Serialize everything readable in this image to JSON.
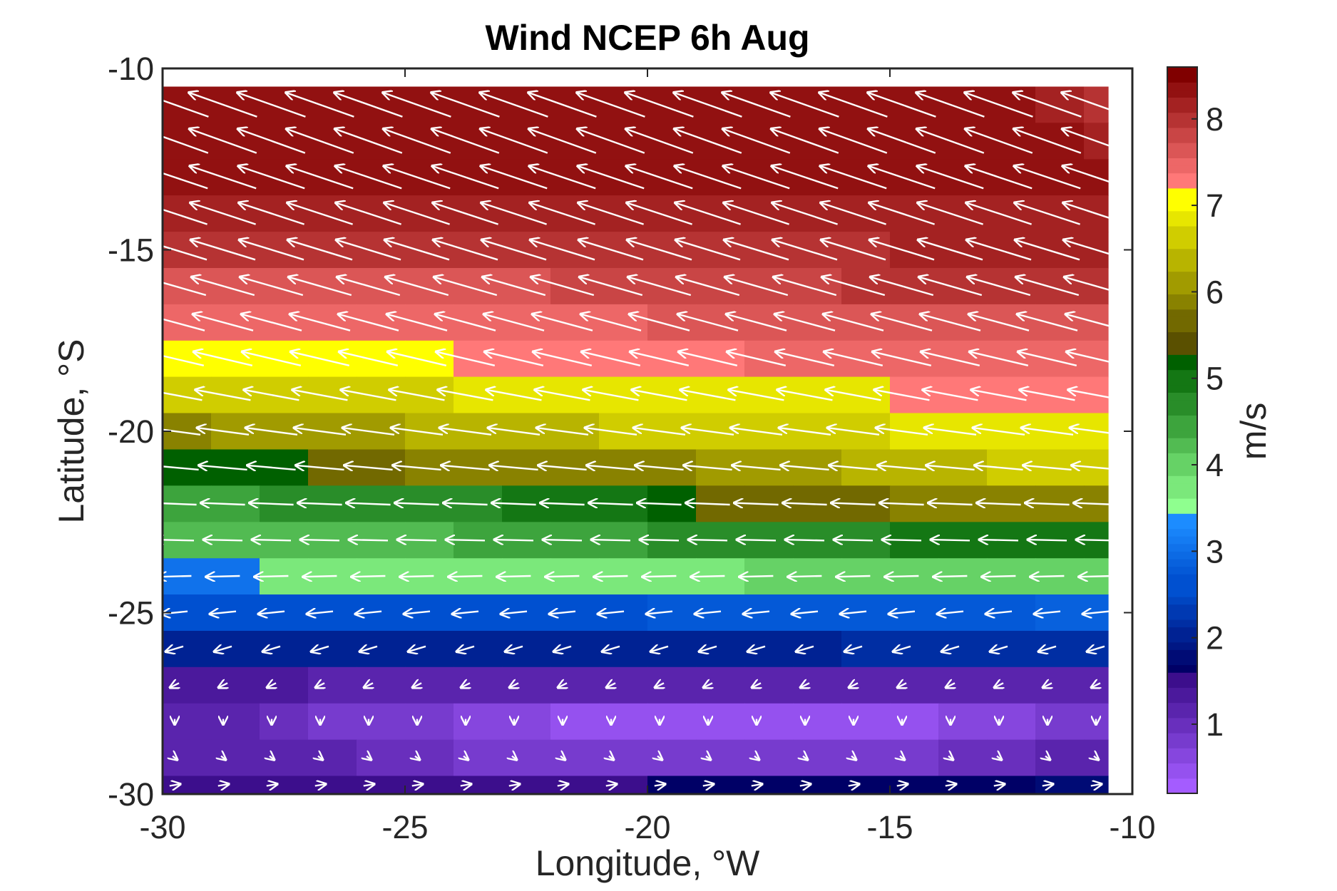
{
  "chart_data": {
    "type": "heatmap",
    "title": "Wind NCEP 6h Aug",
    "xlabel": "Longitude, °W",
    "ylabel": "Latitude, °S",
    "xlim": [
      -30,
      -10
    ],
    "ylim": [
      -30,
      -10
    ],
    "xticks": [
      "-30",
      "-25",
      "-20",
      "-15",
      "-10"
    ],
    "yticks": [
      "-10",
      "-15",
      "-20",
      "-25",
      "-30"
    ],
    "colorbar": {
      "label": "m/s",
      "ticks": [
        "1",
        "2",
        "3",
        "4",
        "5",
        "6",
        "7",
        "8"
      ],
      "range": [
        0.2,
        8.6
      ],
      "segments": [
        {
          "from": 0.2,
          "to": 1.6,
          "colors": [
            "#a45cff",
            "#3c0e8c"
          ]
        },
        {
          "from": 1.6,
          "to": 2.6,
          "colors": [
            "#000066",
            "#0050d0"
          ]
        },
        {
          "from": 2.6,
          "to": 3.4,
          "colors": [
            "#0050d0",
            "#1c8cff"
          ]
        },
        {
          "from": 3.4,
          "to": 5.3,
          "colors": [
            "#8fff8f",
            "#006000"
          ]
        },
        {
          "from": 5.3,
          "to": 7.2,
          "colors": [
            "#5a5000",
            "#ffff00"
          ]
        },
        {
          "from": 7.2,
          "to": 8.6,
          "colors": [
            "#ff7878",
            "#800000"
          ]
        }
      ]
    },
    "grid": false,
    "cell_lon_step": 1,
    "cell_lat_step": 1,
    "lon_start": -30,
    "lon_end": -10.5,
    "rows": [
      {
        "lat_top": -10.5,
        "lat_bottom": -11.5,
        "speed": [
          8.4,
          8.4,
          8.4,
          8.4,
          8.4,
          8.4,
          8.4,
          8.4,
          8.4,
          8.4,
          8.4,
          8.4,
          8.4,
          8.4,
          8.4,
          8.4,
          8.4,
          8.4,
          8.2,
          7.9
        ],
        "u": -7.9,
        "v": 2.8
      },
      {
        "lat_top": -11.5,
        "lat_bottom": -12.5,
        "speed": [
          8.4,
          8.4,
          8.4,
          8.4,
          8.4,
          8.4,
          8.4,
          8.4,
          8.4,
          8.4,
          8.4,
          8.4,
          8.4,
          8.4,
          8.4,
          8.4,
          8.4,
          8.4,
          8.3,
          8.2
        ],
        "u": -7.8,
        "v": 2.8
      },
      {
        "lat_top": -12.5,
        "lat_bottom": -13.5,
        "speed": [
          8.3,
          8.3,
          8.3,
          8.3,
          8.3,
          8.3,
          8.3,
          8.3,
          8.3,
          8.3,
          8.3,
          8.3,
          8.3,
          8.3,
          8.3,
          8.3,
          8.3,
          8.3,
          8.3,
          8.3
        ],
        "u": -7.7,
        "v": 2.6
      },
      {
        "lat_top": -13.5,
        "lat_bottom": -14.5,
        "speed": [
          8.1,
          8.1,
          8.1,
          8.1,
          8.1,
          8.1,
          8.1,
          8.1,
          8.1,
          8.2,
          8.2,
          8.2,
          8.2,
          8.2,
          8.2,
          8.2,
          8.2,
          8.2,
          8.2,
          8.2
        ],
        "u": -7.6,
        "v": 2.5
      },
      {
        "lat_top": -14.5,
        "lat_bottom": -15.5,
        "speed": [
          7.9,
          7.9,
          7.9,
          7.9,
          7.9,
          8.0,
          8.0,
          8.0,
          8.0,
          8.0,
          8.0,
          8.0,
          8.0,
          8.0,
          8.0,
          8.1,
          8.1,
          8.1,
          8.1,
          8.1
        ],
        "u": -7.5,
        "v": 2.3
      },
      {
        "lat_top": -15.5,
        "lat_bottom": -16.5,
        "speed": [
          7.7,
          7.7,
          7.7,
          7.7,
          7.7,
          7.7,
          7.7,
          7.7,
          7.8,
          7.8,
          7.8,
          7.8,
          7.8,
          7.8,
          7.9,
          7.9,
          7.9,
          7.9,
          7.9,
          7.9
        ],
        "u": -7.3,
        "v": 2.1
      },
      {
        "lat_top": -16.5,
        "lat_bottom": -17.5,
        "speed": [
          7.4,
          7.4,
          7.4,
          7.5,
          7.5,
          7.5,
          7.5,
          7.5,
          7.5,
          7.5,
          7.6,
          7.6,
          7.6,
          7.6,
          7.7,
          7.7,
          7.7,
          7.7,
          7.7,
          7.7
        ],
        "u": -7.0,
        "v": 1.9
      },
      {
        "lat_top": -17.5,
        "lat_bottom": -18.5,
        "speed": [
          7.0,
          7.0,
          7.0,
          7.0,
          7.0,
          7.0,
          7.3,
          7.3,
          7.3,
          7.3,
          7.3,
          7.3,
          7.4,
          7.4,
          7.4,
          7.5,
          7.5,
          7.5,
          7.5,
          7.5
        ],
        "u": -6.8,
        "v": 1.6
      },
      {
        "lat_top": -18.5,
        "lat_bottom": -19.5,
        "speed": [
          6.6,
          6.6,
          6.6,
          6.6,
          6.7,
          6.7,
          6.8,
          6.8,
          6.8,
          6.9,
          6.9,
          6.9,
          6.9,
          6.9,
          6.9,
          7.3,
          7.3,
          7.3,
          7.3,
          7.3
        ],
        "u": -6.4,
        "v": 1.2
      },
      {
        "lat_top": -19.5,
        "lat_bottom": -20.5,
        "speed": [
          6.0,
          6.1,
          6.1,
          6.2,
          6.2,
          6.3,
          6.3,
          6.4,
          6.4,
          6.5,
          6.5,
          6.6,
          6.6,
          6.7,
          6.7,
          6.8,
          6.8,
          6.9,
          6.9,
          6.9
        ],
        "u": -6.0,
        "v": 0.8
      },
      {
        "lat_top": -20.5,
        "lat_bottom": -21.5,
        "speed": [
          5.1,
          5.1,
          5.2,
          5.7,
          5.7,
          5.8,
          5.8,
          5.9,
          5.9,
          6.0,
          6.0,
          6.1,
          6.2,
          6.2,
          6.3,
          6.3,
          6.4,
          6.5,
          6.5,
          6.5
        ],
        "u": -5.6,
        "v": 0.5
      },
      {
        "lat_top": -21.5,
        "lat_bottom": -22.5,
        "speed": [
          4.5,
          4.5,
          4.6,
          4.6,
          4.7,
          4.8,
          4.8,
          4.9,
          5.0,
          5.0,
          5.1,
          5.6,
          5.6,
          5.7,
          5.7,
          5.8,
          5.8,
          5.9,
          5.9,
          5.9
        ],
        "u": -5.1,
        "v": 0.2
      },
      {
        "lat_top": -22.5,
        "lat_bottom": -23.5,
        "speed": [
          4.2,
          4.2,
          4.2,
          4.3,
          4.3,
          4.3,
          4.4,
          4.4,
          4.5,
          4.5,
          4.6,
          4.6,
          4.7,
          4.8,
          4.8,
          4.9,
          4.9,
          5.0,
          5.0,
          5.0
        ],
        "u": -4.5,
        "v": 0.1
      },
      {
        "lat_top": -23.5,
        "lat_bottom": -24.5,
        "speed": [
          3.0,
          3.0,
          3.8,
          3.8,
          3.8,
          3.8,
          3.8,
          3.8,
          3.8,
          3.8,
          3.8,
          3.8,
          3.9,
          3.9,
          4.0,
          4.0,
          4.1,
          4.1,
          4.1,
          4.1
        ],
        "u": -3.9,
        "v": -0.1
      },
      {
        "lat_top": -24.5,
        "lat_bottom": -25.5,
        "speed": [
          2.6,
          2.6,
          2.6,
          2.6,
          2.6,
          2.6,
          2.6,
          2.6,
          2.6,
          2.6,
          2.7,
          2.7,
          2.7,
          2.7,
          2.8,
          2.8,
          2.8,
          2.8,
          2.9,
          2.9
        ],
        "u": -3.0,
        "v": -0.3
      },
      {
        "lat_top": -25.5,
        "lat_bottom": -26.5,
        "speed": [
          2.0,
          2.0,
          2.0,
          2.0,
          2.0,
          2.0,
          2.0,
          2.0,
          2.0,
          2.0,
          2.0,
          2.0,
          2.0,
          2.0,
          2.1,
          2.1,
          2.1,
          2.1,
          2.2,
          2.2
        ],
        "u": -2.0,
        "v": -0.6
      },
      {
        "lat_top": -26.5,
        "lat_bottom": -27.5,
        "speed": [
          1.4,
          1.3,
          1.3,
          1.2,
          1.2,
          1.2,
          1.2,
          1.2,
          1.2,
          1.2,
          1.2,
          1.2,
          1.2,
          1.2,
          1.2,
          1.2,
          1.2,
          1.2,
          1.2,
          1.2
        ],
        "u": -1.0,
        "v": -0.5
      },
      {
        "lat_top": -27.5,
        "lat_bottom": -28.5,
        "speed": [
          1.2,
          1.1,
          1.0,
          0.9,
          0.8,
          0.8,
          0.7,
          0.6,
          0.5,
          0.4,
          0.4,
          0.4,
          0.4,
          0.4,
          0.4,
          0.5,
          0.6,
          0.7,
          0.8,
          0.9
        ],
        "u": 0.0,
        "v": -0.6
      },
      {
        "lat_top": -28.5,
        "lat_bottom": -29.5,
        "speed": [
          1.2,
          1.2,
          1.1,
          1.1,
          1.0,
          1.0,
          0.9,
          0.9,
          0.8,
          0.8,
          0.8,
          0.8,
          0.8,
          0.8,
          0.9,
          0.9,
          1.0,
          1.0,
          1.1,
          1.1
        ],
        "u": 0.5,
        "v": -0.4
      },
      {
        "lat_top": -29.5,
        "lat_bottom": -30.0,
        "speed": [
          1.5,
          1.5,
          1.5,
          1.5,
          1.5,
          1.5,
          1.5,
          1.5,
          1.5,
          1.5,
          1.7,
          1.7,
          1.7,
          1.7,
          1.7,
          1.7,
          1.7,
          1.7,
          1.8,
          1.8
        ],
        "u": 1.2,
        "v": 0.2
      }
    ]
  }
}
